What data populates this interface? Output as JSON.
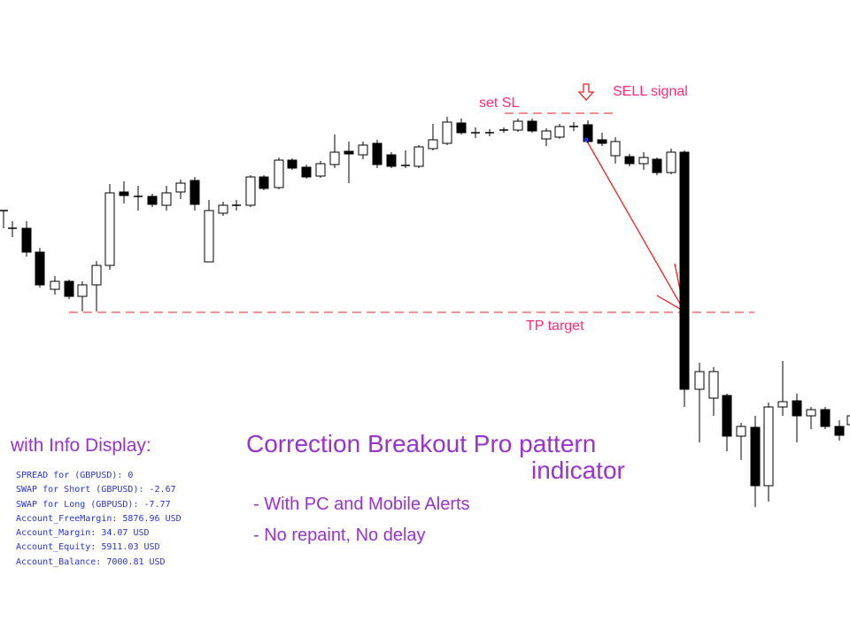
{
  "annotations": {
    "set_sl": "set SL",
    "sell_signal": "SELL signal",
    "tp_target": "TP target"
  },
  "info": {
    "title": "with Info Display:",
    "lines": [
      "SPREAD for (GBPUSD): 0",
      "SWAP for Short (GBPUSD): -2.67",
      "SWAP for Long (GBPUSD): -7.77",
      "Account_FreeMargin: 5876.96 USD",
      "Account_Margin: 34.07 USD",
      "Account_Equity: 5911.03 USD",
      "Account_Balance: 7000.81 USD"
    ]
  },
  "headline": {
    "line1": "Correction Breakout Pro pattern",
    "line2": "indicator"
  },
  "features": [
    "- With PC and Mobile Alerts",
    "- No repaint, No delay"
  ]
}
